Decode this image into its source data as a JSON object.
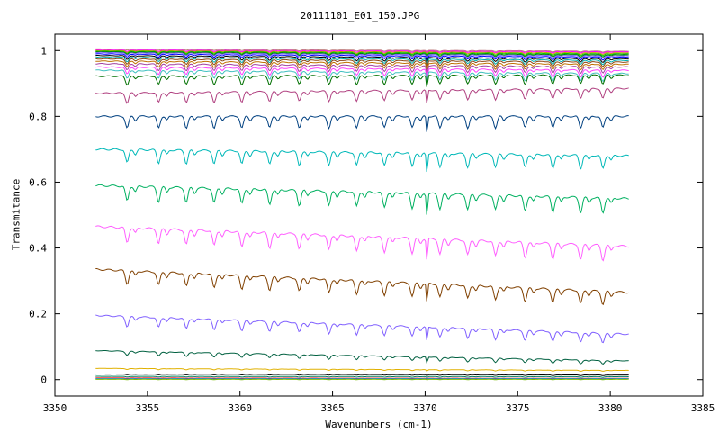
{
  "chart_data": {
    "type": "line",
    "title": "20111101_E01_150.JPG",
    "xlabel": "Wavenumbers (cm-1)",
    "ylabel": "Transmitance",
    "xlim": [
      3350,
      3385
    ],
    "ylim": [
      -0.05,
      1.05
    ],
    "x_ticks": [
      3350,
      3355,
      3360,
      3365,
      3370,
      3375,
      3380,
      3385
    ],
    "y_ticks": [
      0,
      0.2,
      0.4,
      0.6,
      0.8,
      1
    ],
    "y_tick_labels": [
      "0",
      "0.2",
      "0.4",
      "0.6",
      "0.8",
      "1"
    ],
    "x_range": [
      3352.2,
      3381.0
    ],
    "grid": false,
    "legend": "none",
    "line_dip_positions": [
      3353.9,
      3355.6,
      3357.1,
      3358.6,
      3360.1,
      3361.6,
      3363.2,
      3364.8,
      3366.3,
      3367.8,
      3369.3,
      3370.8,
      3372.3,
      3373.8,
      3375.4,
      3376.9,
      3378.4,
      3379.6
    ],
    "spike_position": 3370.1,
    "series": [
      {
        "color": "#c08080",
        "start": 1.005,
        "end": 0.998,
        "depth": 0.003
      },
      {
        "color": "#ff00ff",
        "start": 1.002,
        "end": 0.996,
        "depth": 0.004
      },
      {
        "color": "#c0a000",
        "start": 1.0,
        "end": 0.993,
        "depth": 0.005
      },
      {
        "color": "#00c000",
        "start": 0.998,
        "end": 0.99,
        "depth": 0.006
      },
      {
        "color": "#008000",
        "start": 0.996,
        "end": 0.987,
        "depth": 0.007
      },
      {
        "color": "#8060ff",
        "start": 0.994,
        "end": 0.984,
        "depth": 0.008
      },
      {
        "color": "#0000ff",
        "start": 0.99,
        "end": 0.98,
        "depth": 0.009
      },
      {
        "color": "#000000",
        "start": 0.985,
        "end": 0.975,
        "depth": 0.011
      },
      {
        "color": "#00b0b0",
        "start": 0.98,
        "end": 0.97,
        "depth": 0.013
      },
      {
        "color": "#8b4513",
        "start": 0.975,
        "end": 0.965,
        "depth": 0.015
      },
      {
        "color": "#c07000",
        "start": 0.968,
        "end": 0.958,
        "depth": 0.017
      },
      {
        "color": "#a040a0",
        "start": 0.96,
        "end": 0.95,
        "depth": 0.019
      },
      {
        "color": "#ff40ff",
        "start": 0.95,
        "end": 0.94,
        "depth": 0.021
      },
      {
        "color": "#40c0c0",
        "start": 0.94,
        "end": 0.93,
        "depth": 0.023
      },
      {
        "color": "#007000",
        "start": 0.922,
        "end": 0.925,
        "depth": 0.026
      },
      {
        "color": "#b04080",
        "start": 0.87,
        "end": 0.885,
        "depth": 0.03
      },
      {
        "color": "#004080",
        "start": 0.8,
        "end": 0.8,
        "depth": 0.035
      },
      {
        "color": "#00b8b8",
        "start": 0.7,
        "end": 0.68,
        "depth": 0.04
      },
      {
        "color": "#00b060",
        "start": 0.59,
        "end": 0.55,
        "depth": 0.045
      },
      {
        "color": "#ff60ff",
        "start": 0.465,
        "end": 0.405,
        "depth": 0.045
      },
      {
        "color": "#804000",
        "start": 0.335,
        "end": 0.265,
        "depth": 0.04
      },
      {
        "color": "#8060ff",
        "start": 0.195,
        "end": 0.138,
        "depth": 0.03
      },
      {
        "color": "#006040",
        "start": 0.088,
        "end": 0.057,
        "depth": 0.012
      },
      {
        "color": "#e0b000",
        "start": 0.034,
        "end": 0.028,
        "depth": 0.003
      },
      {
        "color": "#000000",
        "start": 0.017,
        "end": 0.014,
        "depth": 0.002
      },
      {
        "color": "#008060",
        "start": 0.01,
        "end": 0.009,
        "depth": 0.002
      },
      {
        "color": "#ff0000",
        "start": 0.005,
        "end": 0.004,
        "depth": 0.001
      },
      {
        "color": "#00a0ff",
        "start": 0.003,
        "end": 0.003,
        "depth": 0.001
      },
      {
        "color": "#80c000",
        "start": 0.001,
        "end": 0.001,
        "depth": 0.001
      }
    ]
  }
}
